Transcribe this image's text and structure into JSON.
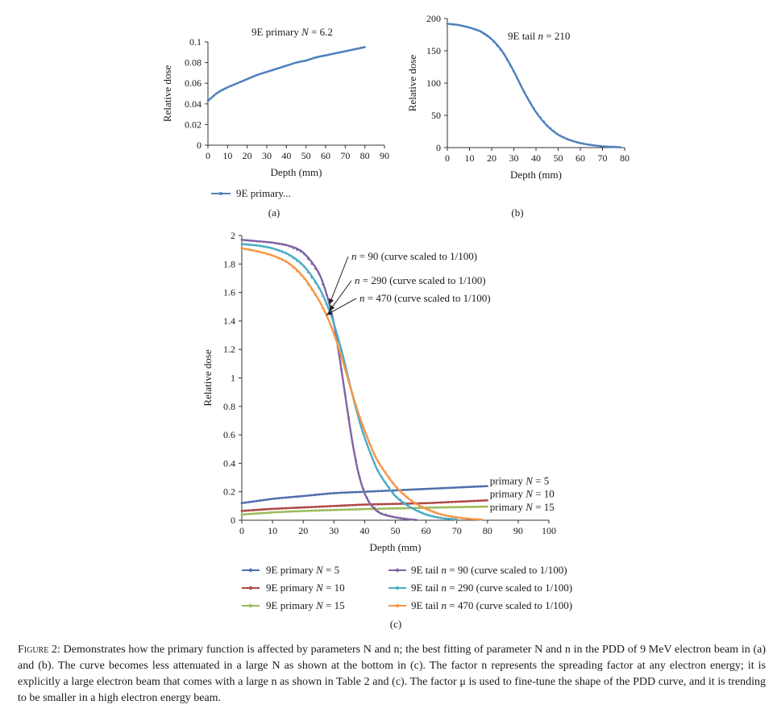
{
  "chart_data": [
    {
      "id": "a",
      "type": "line",
      "panel_label": "(a)",
      "annotation": "9E primary N = 6.2",
      "xlabel": "Depth (mm)",
      "ylabel": "Relative dose",
      "xlim": [
        0,
        90
      ],
      "ylim": [
        0,
        0.1
      ],
      "xticks": [
        "0",
        "10",
        "20",
        "30",
        "40",
        "50",
        "60",
        "70",
        "80",
        "90"
      ],
      "yticks": [
        "0",
        "0.02",
        "0.04",
        "0.06",
        "0.08",
        "0.1"
      ],
      "legend": [
        "9E primary..."
      ],
      "series": [
        {
          "name": "9E primary N = 6.2",
          "color": "#4f81bd",
          "x": [
            0,
            5,
            10,
            15,
            20,
            25,
            30,
            35,
            40,
            45,
            50,
            55,
            60,
            65,
            70,
            75,
            80
          ],
          "y": [
            0.043,
            0.051,
            0.056,
            0.06,
            0.064,
            0.068,
            0.071,
            0.074,
            0.077,
            0.08,
            0.082,
            0.085,
            0.087,
            0.089,
            0.091,
            0.093,
            0.095
          ]
        }
      ]
    },
    {
      "id": "b",
      "type": "line",
      "panel_label": "(b)",
      "annotation": "9E tail n = 210",
      "xlabel": "Depth (mm)",
      "ylabel": "Relative dose",
      "xlim": [
        0,
        80
      ],
      "ylim": [
        0,
        200
      ],
      "xticks": [
        "0",
        "10",
        "20",
        "30",
        "40",
        "50",
        "60",
        "70",
        "80"
      ],
      "yticks": [
        "0",
        "50",
        "100",
        "150",
        "200"
      ],
      "series": [
        {
          "name": "9E tail n = 210",
          "color": "#4f81bd",
          "x": [
            0,
            5,
            10,
            15,
            20,
            25,
            30,
            35,
            40,
            45,
            50,
            55,
            60,
            65,
            70,
            75,
            78
          ],
          "y": [
            192,
            190,
            186,
            180,
            168,
            148,
            118,
            84,
            55,
            34,
            20,
            12,
            7,
            4,
            2,
            1,
            0.5
          ]
        }
      ]
    },
    {
      "id": "c",
      "type": "line",
      "panel_label": "(c)",
      "xlabel": "Depth (mm)",
      "ylabel": "Relative dose",
      "xlim": [
        0,
        100
      ],
      "ylim": [
        0,
        2
      ],
      "xticks": [
        "0",
        "10",
        "20",
        "30",
        "40",
        "50",
        "60",
        "70",
        "80",
        "90",
        "100"
      ],
      "yticks": [
        "0",
        "0.2",
        "0.4",
        "0.6",
        "0.8",
        "1",
        "1.2",
        "1.4",
        "1.6",
        "1.8",
        "2"
      ],
      "annotations": [
        "n = 90 (curve scaled to 1/100)",
        "n = 290 (curve scaled to 1/100)",
        "n = 470 (curve scaled to 1/100)"
      ],
      "series": [
        {
          "name": "9E primary N = 5",
          "end_label": "primary N = 5",
          "color": "#4f6fad",
          "x": [
            0,
            10,
            20,
            30,
            40,
            50,
            60,
            70,
            80
          ],
          "y": [
            0.12,
            0.15,
            0.17,
            0.19,
            0.2,
            0.21,
            0.22,
            0.23,
            0.24
          ]
        },
        {
          "name": "9E primary N = 10",
          "end_label": "primary N = 10",
          "color": "#b04846",
          "x": [
            0,
            10,
            20,
            30,
            40,
            50,
            60,
            70,
            80
          ],
          "y": [
            0.065,
            0.08,
            0.09,
            0.1,
            0.11,
            0.115,
            0.12,
            0.13,
            0.14
          ]
        },
        {
          "name": "9E primary N = 15",
          "end_label": "primary N = 15",
          "color": "#9bbb59",
          "x": [
            0,
            10,
            20,
            30,
            40,
            50,
            60,
            70,
            80
          ],
          "y": [
            0.04,
            0.055,
            0.065,
            0.072,
            0.078,
            0.083,
            0.088,
            0.092,
            0.096
          ]
        },
        {
          "name": "9E tail n = 90 (curve scaled to 1/100)",
          "color": "#8064a2",
          "x": [
            0,
            5,
            10,
            15,
            20,
            25,
            28,
            30,
            32,
            34,
            36,
            38,
            40,
            42,
            45,
            50,
            55,
            57
          ],
          "y": [
            1.97,
            1.96,
            1.95,
            1.93,
            1.88,
            1.74,
            1.56,
            1.38,
            1.12,
            0.83,
            0.55,
            0.33,
            0.19,
            0.11,
            0.05,
            0.02,
            0.005,
            0.002
          ]
        },
        {
          "name": "9E tail n = 290 (curve scaled to 1/100)",
          "color": "#4bacc6",
          "x": [
            0,
            5,
            10,
            15,
            20,
            25,
            28,
            30,
            33,
            35,
            38,
            40,
            43,
            45,
            50,
            55,
            60,
            65,
            70
          ],
          "y": [
            1.94,
            1.93,
            1.91,
            1.87,
            1.79,
            1.64,
            1.5,
            1.38,
            1.15,
            0.97,
            0.72,
            0.58,
            0.41,
            0.32,
            0.17,
            0.09,
            0.04,
            0.015,
            0.005
          ]
        },
        {
          "name": "9E tail n = 470 (curve scaled to 1/100)",
          "color": "#f79646",
          "x": [
            0,
            5,
            10,
            15,
            20,
            25,
            28,
            30,
            33,
            35,
            38,
            40,
            43,
            45,
            50,
            55,
            60,
            65,
            70,
            75,
            78
          ],
          "y": [
            1.91,
            1.89,
            1.86,
            1.81,
            1.71,
            1.55,
            1.42,
            1.31,
            1.11,
            0.96,
            0.75,
            0.63,
            0.47,
            0.39,
            0.24,
            0.14,
            0.08,
            0.04,
            0.02,
            0.008,
            0.005
          ]
        }
      ],
      "legend": [
        "9E primary N = 5",
        "9E primary N = 10",
        "9E primary N = 15",
        "9E tail n = 90 (curve scaled to 1/100)",
        "9E tail n = 290 (curve scaled to 1/100)",
        "9E tail n = 470 (curve scaled to 1/100)"
      ]
    }
  ],
  "caption": {
    "label": "Figure 2:",
    "text": "Demonstrates how the primary function is affected by parameters N and n; the best fitting of parameter N and n in the PDD of 9 MeV electron beam in (a) and (b). The curve becomes less attenuated in a large N as shown at the bottom in (c). The factor n represents the spreading factor at any electron energy; it is explicitly a large electron beam that comes with a large n as shown in Table 2 and (c). The factor μ is used to fine-tune the shape of the PDD curve, and it is trending to be smaller in a high electron energy beam."
  }
}
